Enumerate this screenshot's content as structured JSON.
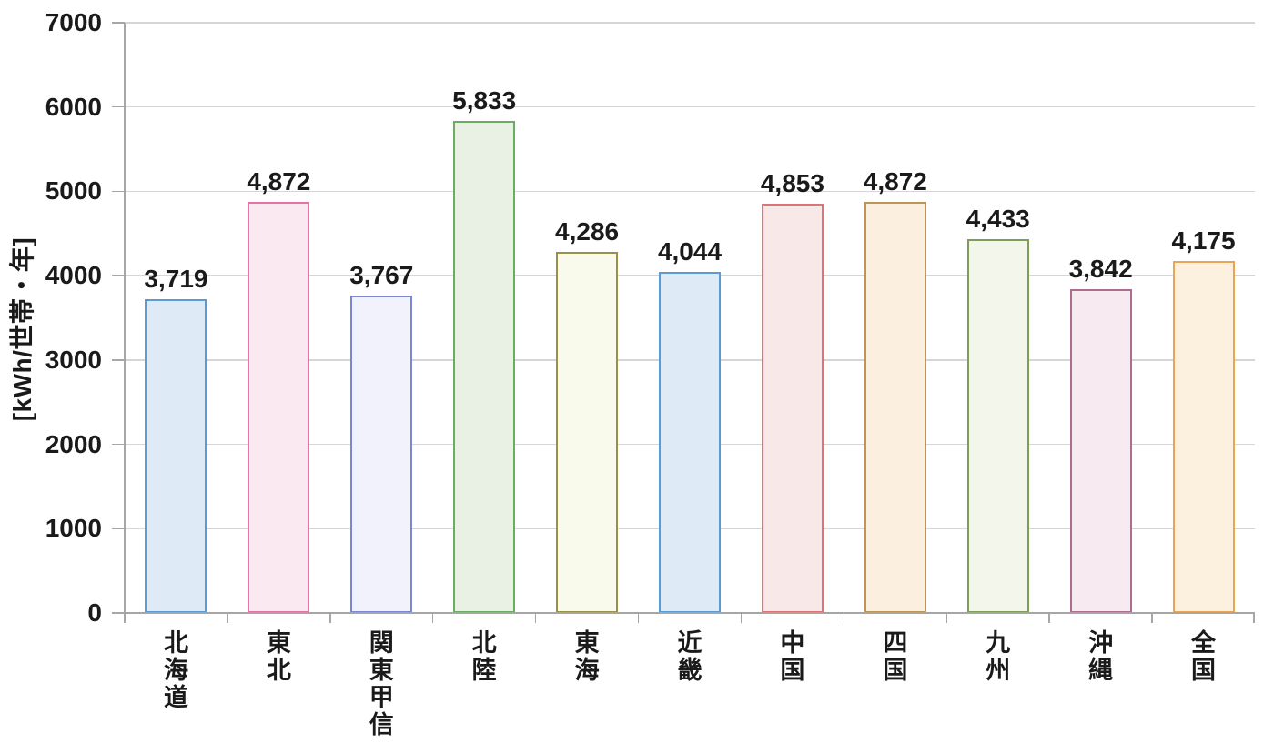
{
  "chart_data": {
    "type": "bar",
    "title": "",
    "xlabel": "",
    "ylabel": "[kWh/世帯・年]",
    "ylim": [
      0,
      7000
    ],
    "ytick_step": 1000,
    "yticks": [
      0,
      1000,
      2000,
      3000,
      4000,
      5000,
      6000,
      7000
    ],
    "ytick_labels": [
      "0",
      "1000",
      "2000",
      "3000",
      "4000",
      "5000",
      "6000",
      "7000"
    ],
    "grid": true,
    "legend": "none",
    "categories": [
      "北海道",
      "東北",
      "関東甲信",
      "北陸",
      "東海",
      "近畿",
      "中国",
      "四国",
      "九州",
      "沖縄",
      "全国"
    ],
    "values": [
      3719,
      4872,
      3767,
      5833,
      4286,
      4044,
      4853,
      4872,
      4433,
      3842,
      4175
    ],
    "data_labels": [
      "3,719",
      "4,872",
      "3,767",
      "5,833",
      "4,286",
      "4,044",
      "4,853",
      "4,872",
      "4,433",
      "3,842",
      "4,175"
    ],
    "bar_styles": [
      {
        "fill": "#DEEBF6",
        "border": "#5B9BD5"
      },
      {
        "fill": "#FBE9F2",
        "border": "#E573A7"
      },
      {
        "fill": "#F1F2FB",
        "border": "#7B86D5"
      },
      {
        "fill": "#E8F1E4",
        "border": "#6BAB63"
      },
      {
        "fill": "#FAFAEC",
        "border": "#97914A"
      },
      {
        "fill": "#DEEBF6",
        "border": "#5B9BD5"
      },
      {
        "fill": "#F8E9E8",
        "border": "#DB7573"
      },
      {
        "fill": "#FBF0DF",
        "border": "#BF9557"
      },
      {
        "fill": "#F3F7EB",
        "border": "#7E9E58"
      },
      {
        "fill": "#F7EAF1",
        "border": "#A96E90"
      },
      {
        "fill": "#FCF0DE",
        "border": "#E9A455"
      }
    ],
    "colors": {
      "background": "#FFFFFF",
      "text": "#1A1A1A",
      "gridline": "#D6D6D6",
      "axis": "#A6A6A6"
    }
  }
}
